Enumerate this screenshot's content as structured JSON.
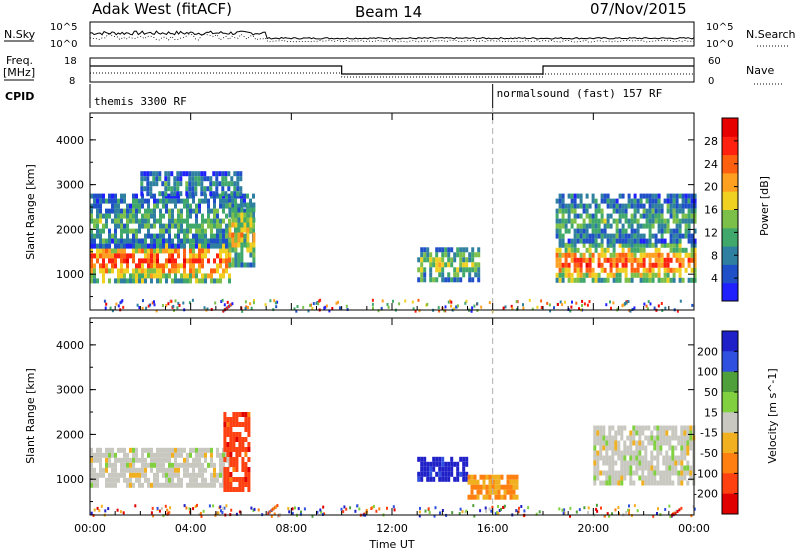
{
  "header": {
    "title_left": "Adak West (fitACF)",
    "title_center": "Beam 14",
    "title_right": "07/Nov/2015"
  },
  "top_panels": {
    "nsky_label": "N.Sky",
    "nsky_tick_hi": "10^5",
    "nsky_tick_lo": "10^0",
    "nsearch_label": "N.Search",
    "nsearch_tick_hi": "10^5",
    "nsearch_tick_lo": "10^0",
    "freq_label_line1": "Freq.",
    "freq_label_line2": "[MHz]",
    "freq_ticks": [
      "18",
      "8"
    ],
    "nave_label": "Nave",
    "nave_ticks": [
      "60",
      "0"
    ],
    "cpid_label": "CPID",
    "cpid_entries": [
      {
        "label": "themis 3300 RF",
        "start_hour": 0
      },
      {
        "label": "normalsound (fast) 157 RF",
        "start_hour": 16
      }
    ]
  },
  "chart_data": [
    {
      "type": "heatmap",
      "name": "power",
      "ylabel": "Slant Range [km]",
      "yticks": [
        "1000",
        "2000",
        "3000",
        "4000"
      ],
      "ylim": [
        200,
        4600
      ],
      "xlim": [
        0,
        24
      ],
      "colorbar": {
        "label": "Power [dB]",
        "ticks": [
          "4",
          "8",
          "12",
          "16",
          "20",
          "24",
          "28"
        ],
        "colors": [
          "#2020ff",
          "#2050c8",
          "#2e7fa0",
          "#3fa86a",
          "#7cc04a",
          "#f0d020",
          "#ffa020",
          "#ff6010",
          "#ff2010",
          "#e60000"
        ]
      },
      "regions": [
        {
          "x": [
            0,
            5.5
          ],
          "y": [
            900,
            1800
          ],
          "level": 0.85
        },
        {
          "x": [
            0,
            6.5
          ],
          "y": [
            1600,
            2800
          ],
          "level": 0.35
        },
        {
          "x": [
            2,
            6
          ],
          "y": [
            2800,
            3300
          ],
          "level": 0.3
        },
        {
          "x": [
            5.5,
            6.5
          ],
          "y": [
            1200,
            2600
          ],
          "level": 0.6
        },
        {
          "x": [
            13,
            15.5
          ],
          "y": [
            900,
            1600
          ],
          "level": 0.5
        },
        {
          "x": [
            18.5,
            24
          ],
          "y": [
            900,
            1700
          ],
          "level": 0.85
        },
        {
          "x": [
            18.5,
            24
          ],
          "y": [
            1700,
            2800
          ],
          "level": 0.35
        }
      ]
    },
    {
      "type": "heatmap",
      "name": "velocity",
      "ylabel": "Slant Range [km]",
      "yticks": [
        "1000",
        "2000",
        "3000",
        "4000"
      ],
      "ylim": [
        200,
        4600
      ],
      "xlim": [
        0,
        24
      ],
      "xticks": [
        "00:00",
        "04:00",
        "08:00",
        "12:00",
        "16:00",
        "20:00",
        "00:00"
      ],
      "xlabel": "Time UT",
      "colorbar": {
        "label": "Velocity [m s^-1]",
        "ticks": [
          "200",
          "100",
          "50",
          "15",
          "-15",
          "-50",
          "-100",
          "-200"
        ],
        "colors": [
          "#2020c8",
          "#3050e0",
          "#4fa03a",
          "#80d040",
          "#c8c8c0",
          "#f0b020",
          "#ff8010",
          "#ff4010",
          "#e00000"
        ]
      },
      "regions": [
        {
          "x": [
            0,
            5.5
          ],
          "y": [
            900,
            1700
          ],
          "value": 0
        },
        {
          "x": [
            5.3,
            6.3
          ],
          "y": [
            800,
            2500
          ],
          "value": -150
        },
        {
          "x": [
            13,
            15
          ],
          "y": [
            1000,
            1500
          ],
          "value": 200
        },
        {
          "x": [
            15,
            17
          ],
          "y": [
            600,
            1100
          ],
          "value": -80
        },
        {
          "x": [
            20,
            24
          ],
          "y": [
            900,
            2200
          ],
          "value": 0
        }
      ]
    }
  ],
  "colors": {
    "frame": "#000000",
    "marker_dashed": "#b0b0b0"
  }
}
